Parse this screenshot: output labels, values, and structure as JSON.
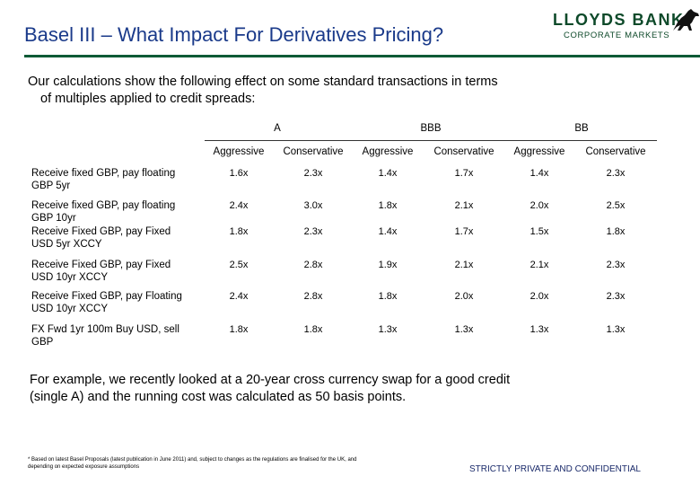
{
  "title": "Basel III – What Impact For Derivatives Pricing?",
  "logo": {
    "name": "LLOYDS BANK",
    "sub": "CORPORATE MARKETS",
    "icon": "horse-icon"
  },
  "intro": {
    "line1": "Our calculations show the following effect on some standard transactions in terms",
    "line2": "of multiples applied to credit spreads:"
  },
  "table": {
    "groups": [
      "A",
      "BBB",
      "BB"
    ],
    "subheaders": [
      "Aggressive",
      "Conservative",
      "Aggressive",
      "Conservative",
      "Aggressive",
      "Conservative"
    ],
    "rows": [
      {
        "label": [
          "Receive fixed GBP, pay floating",
          "GBP 5yr"
        ],
        "values": [
          "1.6x",
          "2.3x",
          "1.4x",
          "1.7x",
          "1.4x",
          "2.3x"
        ]
      },
      {
        "label": [
          "Receive fixed GBP, pay floating",
          "GBP 10yr"
        ],
        "values": [
          "2.4x",
          "3.0x",
          "1.8x",
          "2.1x",
          "2.0x",
          "2.5x"
        ]
      },
      {
        "label": [
          "Receive Fixed GBP, pay Fixed",
          "USD 5yr XCCY"
        ],
        "values": [
          "1.8x",
          "2.3x",
          "1.4x",
          "1.7x",
          "1.5x",
          "1.8x"
        ]
      },
      {
        "label": [
          "Receive Fixed GBP, pay Fixed",
          "USD 10yr XCCY"
        ],
        "values": [
          "2.5x",
          "2.8x",
          "1.9x",
          "2.1x",
          "2.1x",
          "2.3x"
        ]
      },
      {
        "label": [
          "Receive Fixed GBP, pay Floating",
          "USD 10yr XCCY"
        ],
        "values": [
          "2.4x",
          "2.8x",
          "1.8x",
          "2.0x",
          "2.0x",
          "2.3x"
        ]
      },
      {
        "label": [
          "FX Fwd 1yr 100m Buy USD, sell",
          "GBP"
        ],
        "values": [
          "1.8x",
          "1.8x",
          "1.3x",
          "1.3x",
          "1.3x",
          "1.3x"
        ]
      }
    ]
  },
  "example": {
    "line1": "For example, we recently looked at a 20-year cross currency swap for a good credit",
    "line2": "(single A) and the running cost was calculated as 50 basis points."
  },
  "footnote": {
    "line1": "* Based on latest Basel Proposals (latest publication in June 2011) and, subject to changes as the regulations are finalised for the UK, and",
    "line2": "depending on expected exposure assumptions"
  },
  "confidential": "STRICTLY PRIVATE AND CONFIDENTIAL",
  "colors": {
    "title": "#1a3a8a",
    "brand": "#0e4a2a",
    "rule": "#0e5a36"
  }
}
